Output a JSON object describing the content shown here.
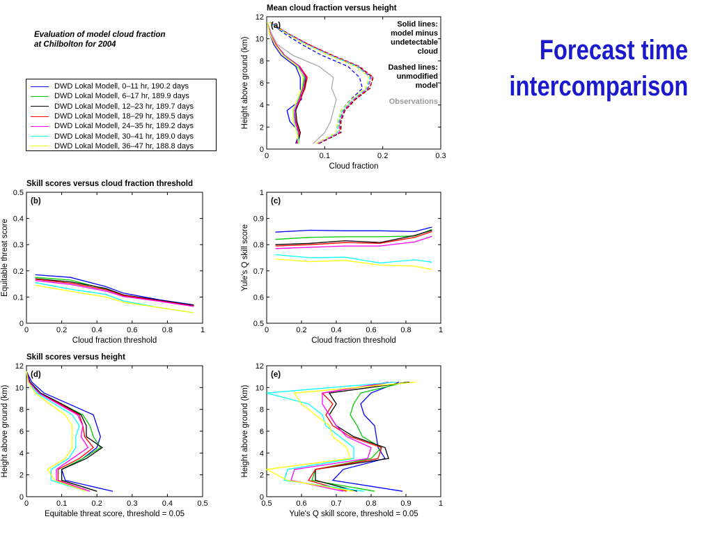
{
  "page": {
    "heading_line1": "Forecast time",
    "heading_line2": "intercomparison",
    "subtitle_line1": "Evaluation of model cloud fraction",
    "subtitle_line2": "at Chilbolton for 2004",
    "heading_color": "#1a1acc"
  },
  "legend": {
    "entries": [
      {
        "label": "DWD Lokal Modell, 0–11 hr, 190.2 days",
        "color": "#0000ff"
      },
      {
        "label": "DWD Lokal Modell, 6–17 hr, 189.9 days",
        "color": "#00cc00"
      },
      {
        "label": "DWD Lokal Modell, 12–23 hr, 189.7 days",
        "color": "#000000"
      },
      {
        "label": "DWD Lokal Modell, 18–29 hr, 189.5 days",
        "color": "#ff0000"
      },
      {
        "label": "DWD Lokal Modell, 24–35 hr, 189.2 days",
        "color": "#ff00ff"
      },
      {
        "label": "DWD Lokal Modell, 30–41 hr, 189.0 days",
        "color": "#00ffff"
      },
      {
        "label": "DWD Lokal Modell, 36–47 hr, 188.8 days",
        "color": "#ffff00"
      }
    ]
  },
  "chart_data": [
    {
      "id": "a",
      "type": "line",
      "orientation": "profile",
      "title": "Mean cloud fraction versus height",
      "panel_label": "(a)",
      "xlabel": "Cloud fraction",
      "ylabel": "Height above ground (km)",
      "xlim": [
        0,
        0.3
      ],
      "ylim": [
        0,
        12
      ],
      "xticks": [
        0,
        0.1,
        0.2,
        0.3
      ],
      "yticks": [
        0,
        2,
        4,
        6,
        8,
        10,
        12
      ],
      "annotations": [
        {
          "lines": [
            "Solid lines:",
            "model minus",
            "undetectable",
            "cloud"
          ],
          "color": "#000000"
        },
        {
          "lines": [
            "Dashed lines:",
            "unmodified",
            "model"
          ],
          "color": "#000000"
        },
        {
          "lines": [
            "Observations"
          ],
          "color": "#999999"
        }
      ],
      "y": [
        0.5,
        1.5,
        2.5,
        3.5,
        4.5,
        5.5,
        6.5,
        7.5,
        8.5,
        9.5,
        10.5,
        11.5
      ],
      "series": [
        {
          "color": "#0000ff",
          "solid": [
            0.05,
            0.057,
            0.04,
            0.035,
            0.06,
            0.058,
            0.058,
            0.05,
            0.025,
            0.012,
            0.005,
            0.001
          ],
          "dashed": [
            0.085,
            0.12,
            0.122,
            0.128,
            0.145,
            0.165,
            0.16,
            0.14,
            0.095,
            0.06,
            0.03,
            0.005
          ]
        },
        {
          "color": "#00cc00",
          "solid": [
            0.055,
            0.056,
            0.05,
            0.045,
            0.055,
            0.062,
            0.065,
            0.052,
            0.03,
            0.015,
            0.006,
            0.001
          ],
          "dashed": [
            0.09,
            0.125,
            0.125,
            0.132,
            0.15,
            0.175,
            0.18,
            0.155,
            0.11,
            0.07,
            0.035,
            0.006
          ]
        },
        {
          "color": "#000000",
          "solid": [
            0.054,
            0.058,
            0.052,
            0.05,
            0.058,
            0.065,
            0.068,
            0.055,
            0.03,
            0.015,
            0.006,
            0.001
          ],
          "dashed": [
            0.09,
            0.128,
            0.128,
            0.135,
            0.153,
            0.178,
            0.183,
            0.158,
            0.112,
            0.072,
            0.036,
            0.006
          ]
        },
        {
          "color": "#ff0000",
          "solid": [
            0.052,
            0.057,
            0.05,
            0.048,
            0.058,
            0.066,
            0.07,
            0.057,
            0.031,
            0.016,
            0.006,
            0.001
          ],
          "dashed": [
            0.088,
            0.127,
            0.127,
            0.134,
            0.152,
            0.177,
            0.184,
            0.16,
            0.114,
            0.072,
            0.036,
            0.006
          ]
        },
        {
          "color": "#ff00ff",
          "solid": [
            0.053,
            0.055,
            0.049,
            0.048,
            0.056,
            0.063,
            0.067,
            0.056,
            0.03,
            0.015,
            0.006,
            0.001
          ],
          "dashed": [
            0.088,
            0.125,
            0.126,
            0.133,
            0.15,
            0.174,
            0.18,
            0.158,
            0.112,
            0.07,
            0.035,
            0.006
          ]
        },
        {
          "color": "#00ffff",
          "solid": [
            0.056,
            0.053,
            0.047,
            0.046,
            0.054,
            0.06,
            0.064,
            0.054,
            0.029,
            0.014,
            0.005,
            0.001
          ],
          "dashed": [
            0.085,
            0.122,
            0.124,
            0.13,
            0.148,
            0.172,
            0.178,
            0.156,
            0.11,
            0.068,
            0.034,
            0.005
          ]
        },
        {
          "color": "#ffff00",
          "solid": [
            0.055,
            0.052,
            0.046,
            0.045,
            0.053,
            0.06,
            0.063,
            0.053,
            0.028,
            0.014,
            0.005,
            0.001
          ],
          "dashed": [
            0.085,
            0.12,
            0.122,
            0.128,
            0.146,
            0.17,
            0.176,
            0.154,
            0.108,
            0.066,
            0.033,
            0.005
          ]
        }
      ],
      "observations": {
        "color": "#aaaaaa",
        "y": [
          0.5,
          1.5,
          2.5,
          3.5,
          4.5,
          5.5,
          6.5,
          7.5,
          8.5,
          9.5,
          10.5,
          11.3
        ],
        "x": [
          0.08,
          0.1,
          0.11,
          0.115,
          0.12,
          0.112,
          0.115,
          0.09,
          0.045,
          0.018,
          0.008,
          0.002
        ]
      }
    },
    {
      "id": "b",
      "type": "line",
      "orientation": "xy",
      "title": "Skill scores versus cloud fraction threshold",
      "panel_label": "(b)",
      "xlabel": "Cloud fraction threshold",
      "ylabel": "Equitable threat score",
      "xlim": [
        0,
        1
      ],
      "ylim": [
        0,
        0.5
      ],
      "xticks": [
        0,
        0.2,
        0.4,
        0.6,
        0.8,
        1
      ],
      "yticks": [
        0,
        0.1,
        0.2,
        0.3,
        0.4,
        0.5
      ],
      "x": [
        0.05,
        0.25,
        0.45,
        0.55,
        0.75,
        0.95
      ],
      "series": [
        {
          "color": "#0000ff",
          "values": [
            0.185,
            0.175,
            0.14,
            0.115,
            0.09,
            0.07
          ]
        },
        {
          "color": "#00cc00",
          "values": [
            0.175,
            0.165,
            0.13,
            0.105,
            0.085,
            0.068
          ]
        },
        {
          "color": "#000000",
          "values": [
            0.17,
            0.158,
            0.133,
            0.108,
            0.088,
            0.068
          ]
        },
        {
          "color": "#ff0000",
          "values": [
            0.168,
            0.153,
            0.128,
            0.106,
            0.086,
            0.066
          ]
        },
        {
          "color": "#ff00ff",
          "values": [
            0.163,
            0.148,
            0.123,
            0.102,
            0.084,
            0.064
          ]
        },
        {
          "color": "#00ffff",
          "values": [
            0.155,
            0.13,
            0.11,
            0.085,
            0.06,
            0.04
          ]
        },
        {
          "color": "#ffff00",
          "values": [
            0.145,
            0.122,
            0.1,
            0.08,
            0.06,
            0.04
          ]
        }
      ]
    },
    {
      "id": "c",
      "type": "line",
      "orientation": "xy",
      "title": "",
      "panel_label": "(c)",
      "xlabel": "Cloud fraction threshold",
      "ylabel": "Yule's Q skill score",
      "xlim": [
        0,
        1
      ],
      "ylim": [
        0.5,
        1
      ],
      "xticks": [
        0,
        0.2,
        0.4,
        0.6,
        0.8,
        1
      ],
      "yticks": [
        0.5,
        0.6,
        0.7,
        0.8,
        0.9,
        1
      ],
      "x": [
        0.05,
        0.25,
        0.45,
        0.65,
        0.85,
        0.95
      ],
      "series": [
        {
          "color": "#0000ff",
          "values": [
            0.848,
            0.855,
            0.853,
            0.853,
            0.85,
            0.867
          ]
        },
        {
          "color": "#00cc00",
          "values": [
            0.82,
            0.828,
            0.83,
            0.83,
            0.833,
            0.858
          ]
        },
        {
          "color": "#000000",
          "values": [
            0.8,
            0.805,
            0.815,
            0.808,
            0.835,
            0.855
          ]
        },
        {
          "color": "#ff0000",
          "values": [
            0.795,
            0.8,
            0.808,
            0.805,
            0.828,
            0.85
          ]
        },
        {
          "color": "#ff00ff",
          "values": [
            0.785,
            0.79,
            0.795,
            0.795,
            0.81,
            0.832
          ]
        },
        {
          "color": "#00ffff",
          "values": [
            0.762,
            0.75,
            0.752,
            0.73,
            0.742,
            0.733
          ]
        },
        {
          "color": "#ffff00",
          "values": [
            0.745,
            0.735,
            0.74,
            0.722,
            0.718,
            0.705
          ]
        }
      ]
    },
    {
      "id": "d",
      "type": "line",
      "orientation": "profile",
      "title": "Skill scores versus height",
      "panel_label": "(d)",
      "xlabel": "Equitable threat score, threshold = 0.05",
      "ylabel": "Height above ground (km)",
      "xlim": [
        0,
        0.5
      ],
      "ylim": [
        0,
        12
      ],
      "xticks": [
        0,
        0.1,
        0.2,
        0.3,
        0.4,
        0.5
      ],
      "yticks": [
        0,
        2,
        4,
        6,
        8,
        10,
        12
      ],
      "y": [
        0.5,
        1.5,
        2.5,
        3.5,
        4.5,
        5.5,
        6.5,
        7.5,
        8.5,
        9.5,
        10.5,
        11.5
      ],
      "series": [
        {
          "color": "#0000ff",
          "values": [
            0.245,
            0.11,
            0.1,
            0.16,
            0.2,
            0.21,
            0.2,
            0.19,
            0.12,
            0.05,
            0.015,
            0.0
          ]
        },
        {
          "color": "#00cc00",
          "values": [
            0.2,
            0.1,
            0.1,
            0.16,
            0.21,
            0.19,
            0.18,
            0.16,
            0.1,
            0.04,
            0.01,
            0.0
          ]
        },
        {
          "color": "#000000",
          "values": [
            0.2,
            0.1,
            0.1,
            0.17,
            0.215,
            0.17,
            0.17,
            0.155,
            0.1,
            0.04,
            0.01,
            0.0
          ]
        },
        {
          "color": "#ff0000",
          "values": [
            0.18,
            0.09,
            0.09,
            0.15,
            0.19,
            0.165,
            0.16,
            0.15,
            0.095,
            0.035,
            0.008,
            0.0
          ]
        },
        {
          "color": "#ff00ff",
          "values": [
            0.18,
            0.085,
            0.085,
            0.13,
            0.175,
            0.155,
            0.16,
            0.145,
            0.09,
            0.035,
            0.008,
            0.0
          ]
        },
        {
          "color": "#00ffff",
          "values": [
            0.17,
            0.07,
            0.07,
            0.12,
            0.14,
            0.14,
            0.15,
            0.13,
            0.08,
            0.03,
            0.005,
            0.0
          ]
        },
        {
          "color": "#ffff00",
          "values": [
            0.17,
            0.08,
            0.06,
            0.11,
            0.13,
            0.13,
            0.13,
            0.11,
            0.065,
            0.025,
            0.005,
            0.0
          ]
        }
      ]
    },
    {
      "id": "e",
      "type": "line",
      "orientation": "profile",
      "title": "",
      "panel_label": "(e)",
      "xlabel": "Yule's Q skill score, threshold = 0.05",
      "ylabel": "Height above ground (km)",
      "xlim": [
        0.5,
        1
      ],
      "ylim": [
        0,
        12
      ],
      "xticks": [
        0.5,
        0.6,
        0.7,
        0.8,
        0.9,
        1
      ],
      "yticks": [
        0,
        2,
        4,
        6,
        8,
        10,
        12
      ],
      "y": [
        0.5,
        1.5,
        2.5,
        3.5,
        4.5,
        5.5,
        6.5,
        7.5,
        8.5,
        9.5,
        10.5
      ],
      "series": [
        {
          "color": "#0000ff",
          "values": [
            0.89,
            0.69,
            0.72,
            0.84,
            0.82,
            0.815,
            0.81,
            0.78,
            0.77,
            0.8,
            0.88
          ]
        },
        {
          "color": "#00cc00",
          "values": [
            0.81,
            0.63,
            0.64,
            0.8,
            0.83,
            0.775,
            0.76,
            0.74,
            0.75,
            0.77,
            0.9
          ]
        },
        {
          "color": "#000000",
          "values": [
            0.76,
            0.64,
            0.64,
            0.85,
            0.84,
            0.75,
            0.7,
            0.68,
            0.7,
            0.68,
            0.91
          ]
        },
        {
          "color": "#ff0000",
          "values": [
            0.73,
            0.62,
            0.64,
            0.82,
            0.83,
            0.74,
            0.69,
            0.67,
            0.69,
            0.66,
            0.86
          ]
        },
        {
          "color": "#ff00ff",
          "values": [
            0.72,
            0.57,
            0.58,
            0.79,
            0.8,
            0.73,
            0.7,
            0.68,
            0.66,
            0.66,
            0.85
          ]
        },
        {
          "color": "#00ffff",
          "values": [
            0.78,
            0.55,
            0.56,
            0.75,
            0.75,
            0.71,
            0.67,
            0.66,
            0.62,
            0.5,
            0.87
          ]
        },
        {
          "color": "#ffff00",
          "values": [
            0.75,
            0.56,
            0.5,
            0.74,
            0.73,
            0.69,
            0.68,
            0.64,
            0.6,
            0.58,
            0.93
          ]
        }
      ]
    }
  ]
}
